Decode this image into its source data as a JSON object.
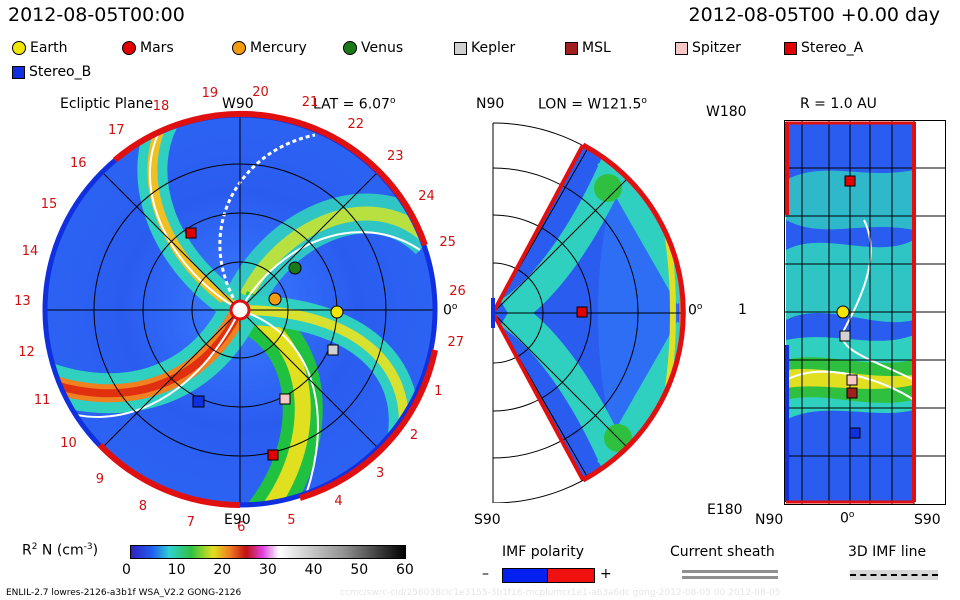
{
  "header": {
    "left_datetime": "2012-08-05T00:00",
    "right_datetime": "2012-08-05T00 +0.00 day"
  },
  "legend": [
    {
      "name": "Earth",
      "color": "#f2e600",
      "shape": "circle"
    },
    {
      "name": "Mars",
      "color": "#e00000",
      "shape": "circle"
    },
    {
      "name": "Mercury",
      "color": "#f39c12",
      "shape": "circle"
    },
    {
      "name": "Venus",
      "color": "#1a7a1a",
      "shape": "circle"
    },
    {
      "name": "Kepler",
      "color": "#d0d0d0",
      "shape": "square"
    },
    {
      "name": "MSL",
      "color": "#a02020",
      "shape": "square"
    },
    {
      "name": "Spitzer",
      "color": "#f7c6c6",
      "shape": "square"
    },
    {
      "name": "Stereo_A",
      "color": "#e00000",
      "shape": "square"
    },
    {
      "name": "Stereo_B",
      "color": "#1030e0",
      "shape": "square"
    }
  ],
  "panels": {
    "ecliptic": {
      "title": "Ecliptic Plane",
      "top_label": "W90",
      "lat_label": "LAT = 6.07",
      "lat_sup": "o",
      "bottom_label": "E90",
      "right_label": "0",
      "right_sup": "o",
      "hour_labels": [
        "19",
        "20",
        "21",
        "22",
        "23",
        "24",
        "25",
        "26",
        "27",
        "1",
        "2",
        "3",
        "4",
        "5",
        "6",
        "7",
        "8",
        "9",
        "10",
        "11",
        "12",
        "13",
        "14",
        "15",
        "16",
        "17",
        "18"
      ]
    },
    "meridional": {
      "top_left": "N90",
      "lon_label": "LON = W121.5",
      "lon_sup": "o",
      "bottom_left": "S90",
      "right_label": "0",
      "right_sup": "o"
    },
    "radial": {
      "r_label": "R = 1.0 AU",
      "top_left": "W180",
      "mid_left": "1",
      "bottom_left": "E180",
      "bottom_n": "N90",
      "bottom_zero": "0",
      "bottom_zero_sup": "o",
      "bottom_s": "S90"
    }
  },
  "colorbar": {
    "label": "R",
    "label_sup": "2",
    "label_rest": " N (cm",
    "label_unit_sup": "-3",
    "label_close": ")",
    "ticks": [
      "0",
      "10",
      "20",
      "30",
      "40",
      "50",
      "60"
    ]
  },
  "imf": {
    "title": "IMF polarity",
    "minus": "–",
    "plus": "+",
    "current_sheath": "Current sheath",
    "imf_line": "3D IMF line"
  },
  "footer": {
    "model_info": "ENLIL-2.7 lowres-2126-a3b1f WSA_V2.2 GONG-2126",
    "watermark": "ccmc/swrc-cid/256038clc1e3155-3b1f16-mcplumcr1e1-a63a6dc gong-2012-08-05 00 2012-08-05"
  }
}
